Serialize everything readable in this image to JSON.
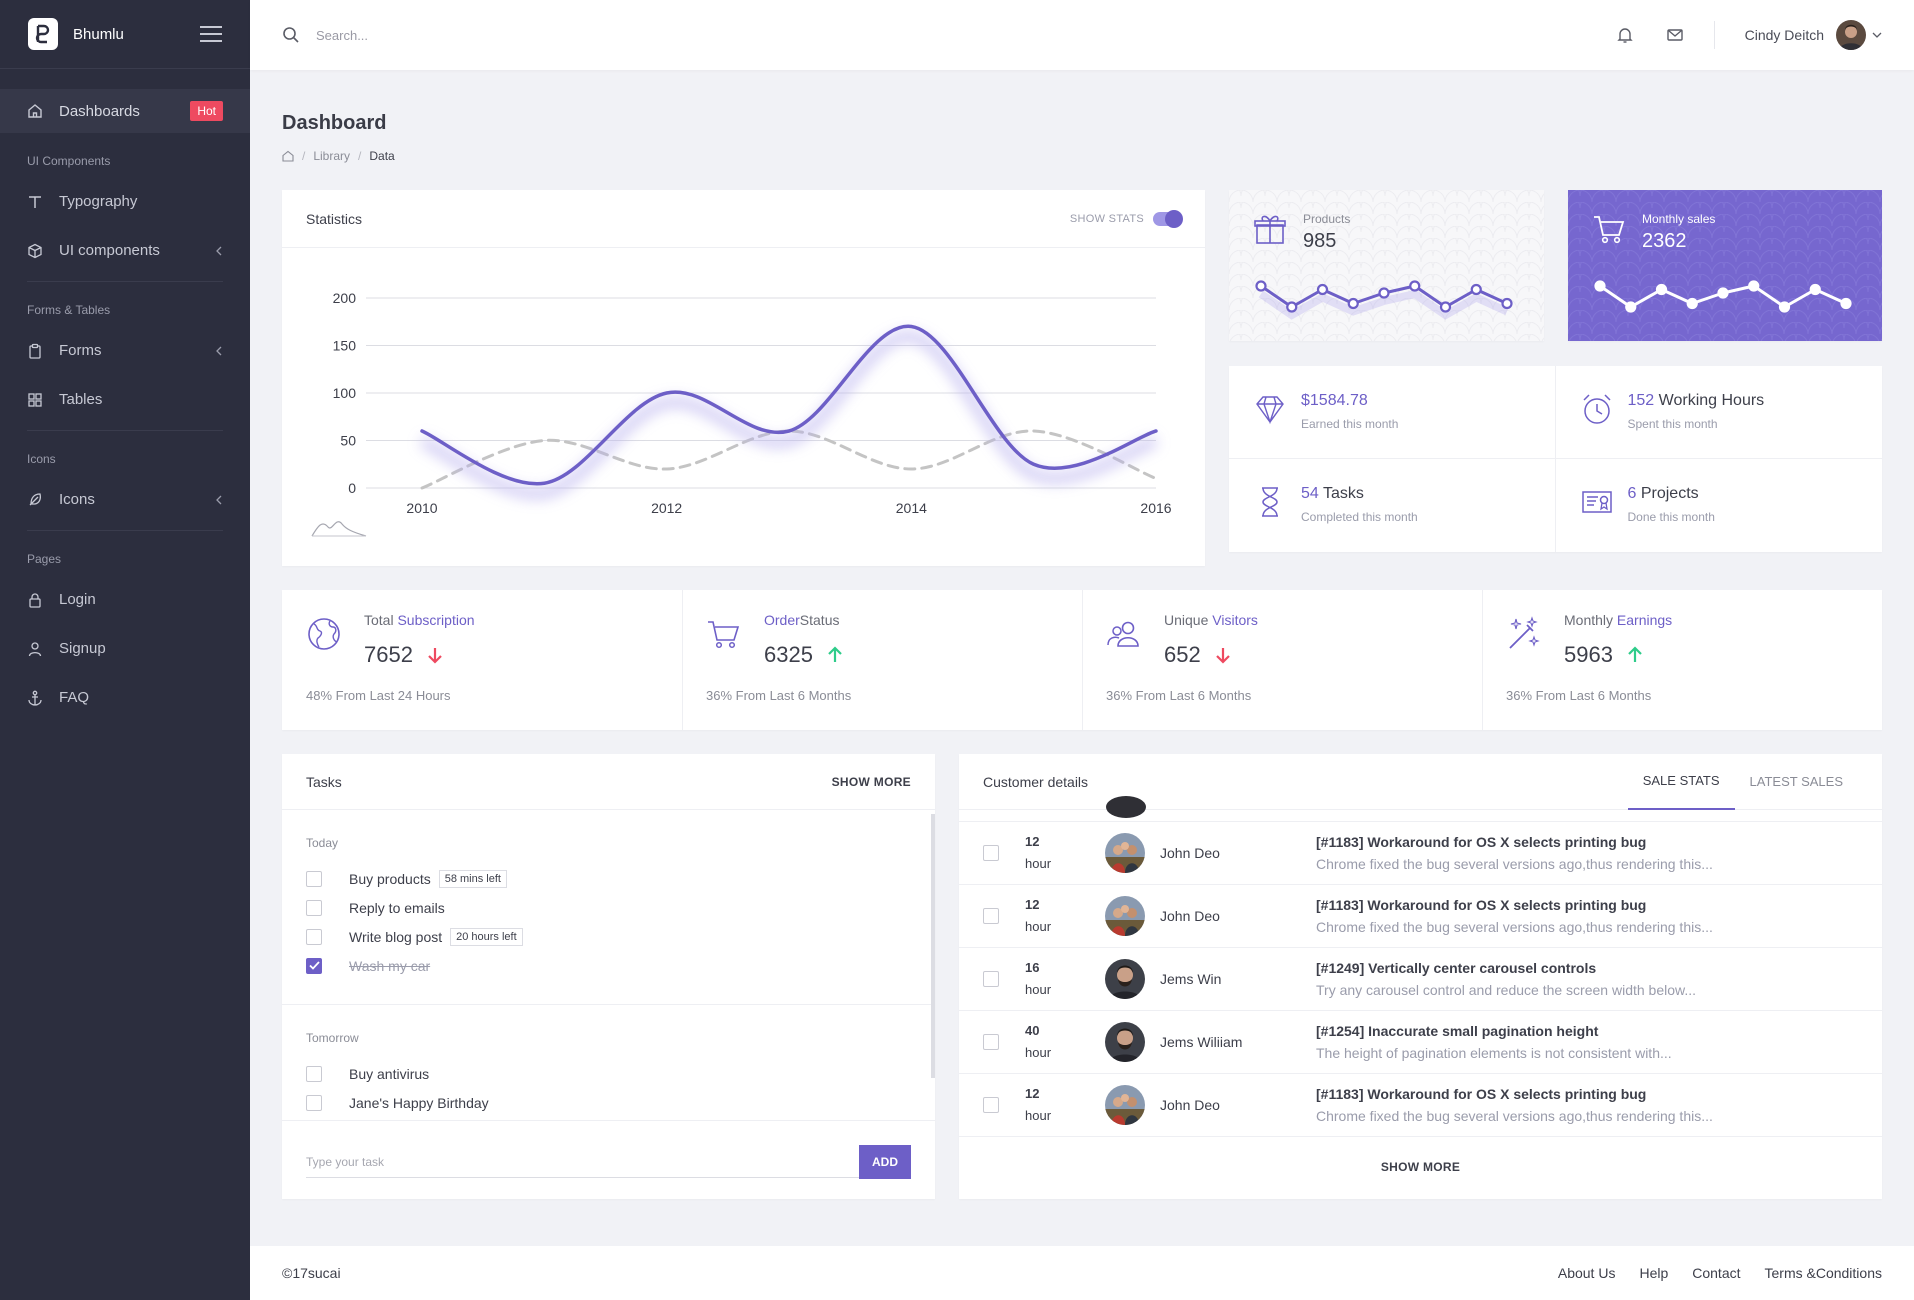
{
  "app": {
    "name": "Bhumlu"
  },
  "sidebar": {
    "active_item": {
      "label": "Dashboards",
      "badge": "Hot",
      "icon": "home-icon"
    },
    "sections": [
      {
        "heading": "UI Components",
        "items": [
          {
            "label": "Typography",
            "icon": "typography-icon"
          },
          {
            "label": "UI components",
            "icon": "cube-icon"
          }
        ]
      },
      {
        "heading": "Forms & Tables",
        "items": [
          {
            "label": "Forms",
            "icon": "clipboard-icon"
          },
          {
            "label": "Tables",
            "icon": "grid-icon"
          }
        ]
      },
      {
        "heading": "Icons",
        "items": [
          {
            "label": "Icons",
            "icon": "feather-icon"
          }
        ]
      },
      {
        "heading": "Pages",
        "items": [
          {
            "label": "Login",
            "icon": "lock-icon"
          },
          {
            "label": "Signup",
            "icon": "user-icon"
          },
          {
            "label": "FAQ",
            "icon": "anchor-icon"
          }
        ]
      }
    ]
  },
  "topbar": {
    "search_placeholder": "Search...",
    "user_name": "Cindy Deitch"
  },
  "page": {
    "title": "Dashboard",
    "breadcrumb": [
      "Library",
      "Data"
    ]
  },
  "statistics": {
    "title": "Statistics",
    "toggle_label": "SHOW STATS",
    "toggle_on": true,
    "chart_data": {
      "type": "line",
      "x": [
        2010,
        2011,
        2012,
        2013,
        2014,
        2015,
        2016
      ],
      "xticks": [
        "2010",
        "2012",
        "2014",
        "2016"
      ],
      "yticks": [
        "0",
        "50",
        "100",
        "150",
        "200"
      ],
      "ylim": [
        0,
        200
      ],
      "xlim": [
        2010,
        2016
      ],
      "series": [
        {
          "values": [
            60,
            5,
            100,
            60,
            170,
            25,
            60
          ],
          "color": "#6d5fc7",
          "style": "solid"
        },
        {
          "values": [
            0,
            50,
            20,
            60,
            20,
            60,
            10
          ],
          "color": "#c4c4c4",
          "style": "dashed"
        }
      ]
    }
  },
  "mini_cards": [
    {
      "label": "Products",
      "value": "985",
      "icon": "gift-icon",
      "theme": "light",
      "spark": [
        8,
        2,
        7,
        3,
        6,
        8,
        2,
        7,
        3
      ]
    },
    {
      "label": "Monthly sales",
      "value": "2362",
      "icon": "cart-icon",
      "theme": "purple",
      "spark": [
        8,
        2,
        7,
        3,
        6,
        8,
        2,
        7,
        3
      ]
    }
  ],
  "info": [
    {
      "value": "$1584.78",
      "suffix": "",
      "sub": "Earned this month",
      "icon": "diamond-icon"
    },
    {
      "value": "152",
      "suffix": " Working Hours",
      "sub": "Spent this month",
      "icon": "alarm-clock-icon"
    },
    {
      "value": "54",
      "suffix": " Tasks",
      "sub": "Completed this month",
      "icon": "hourglass-icon"
    },
    {
      "value": "6",
      "suffix": " Projects",
      "sub": "Done this month",
      "icon": "certificate-icon"
    }
  ],
  "kpis": [
    {
      "title_plain": "Total ",
      "title_accent": "Subscription",
      "value": "7652",
      "trend": "down",
      "sub": "48% From Last 24 Hours",
      "icon": "globe-icon"
    },
    {
      "title_accent": "Order",
      "title_plain": "Status",
      "value": "6325",
      "trend": "up",
      "sub": "36% From Last 6 Months",
      "icon": "cart-icon"
    },
    {
      "title_plain": "Unique ",
      "title_accent": "Visitors",
      "value": "652",
      "trend": "down",
      "sub": "36% From Last 6 Months",
      "icon": "users-icon"
    },
    {
      "title_plain": "Monthly ",
      "title_accent": "Earnings",
      "value": "5963",
      "trend": "up",
      "sub": "36% From Last 6 Months",
      "icon": "magic-wand-icon"
    }
  ],
  "tasks": {
    "title": "Tasks",
    "show_more": "SHOW MORE",
    "groups": [
      {
        "name": "Today",
        "items": [
          {
            "text": "Buy products",
            "tag": "58 mins left",
            "done": false
          },
          {
            "text": "Reply to emails",
            "tag": "",
            "done": false
          },
          {
            "text": "Write blog post",
            "tag": "20 hours left",
            "done": false
          },
          {
            "text": "Wash my car",
            "tag": "",
            "done": true
          }
        ]
      },
      {
        "name": "Tomorrow",
        "items": [
          {
            "text": "Buy antivirus",
            "tag": "",
            "done": false
          },
          {
            "text": "Jane's Happy Birthday",
            "tag": "",
            "done": false
          }
        ]
      }
    ],
    "input_placeholder": "Type your task",
    "add_label": "ADD"
  },
  "customers": {
    "title": "Customer details",
    "tabs": [
      "SALE STATS",
      "LATEST SALES"
    ],
    "active_tab": 0,
    "rows": [
      {
        "time": "12",
        "unit": "hour",
        "name": "John Deo",
        "avatar": "group",
        "issue": "[#1183] Workaround for OS X selects printing bug",
        "desc": "Chrome fixed the bug several versions ago,thus rendering this..."
      },
      {
        "time": "12",
        "unit": "hour",
        "name": "John Deo",
        "avatar": "group",
        "issue": "[#1183] Workaround for OS X selects printing bug",
        "desc": "Chrome fixed the bug several versions ago,thus rendering this..."
      },
      {
        "time": "16",
        "unit": "hour",
        "name": "Jems Win",
        "avatar": "man",
        "issue": "[#1249] Vertically center carousel controls",
        "desc": "Try any carousel control and reduce the screen width below..."
      },
      {
        "time": "40",
        "unit": "hour",
        "name": "Jems Wiliiam",
        "avatar": "man",
        "issue": "[#1254] Inaccurate small pagination height",
        "desc": "The height of pagination elements is not consistent with..."
      },
      {
        "time": "12",
        "unit": "hour",
        "name": "John Deo",
        "avatar": "group",
        "issue": "[#1183] Workaround for OS X selects printing bug",
        "desc": "Chrome fixed the bug several versions ago,thus rendering this..."
      }
    ],
    "show_more": "SHOW MORE"
  },
  "footer": {
    "copyright": "©17sucai",
    "links": [
      "About Us",
      "Help",
      "Contact",
      "Terms &Conditions"
    ]
  },
  "colors": {
    "accent": "#6d5fc7",
    "sidebar": "#2c2e3e",
    "hot": "#ee4a60",
    "up": "#2ecc8a",
    "down": "#ee4a60"
  }
}
